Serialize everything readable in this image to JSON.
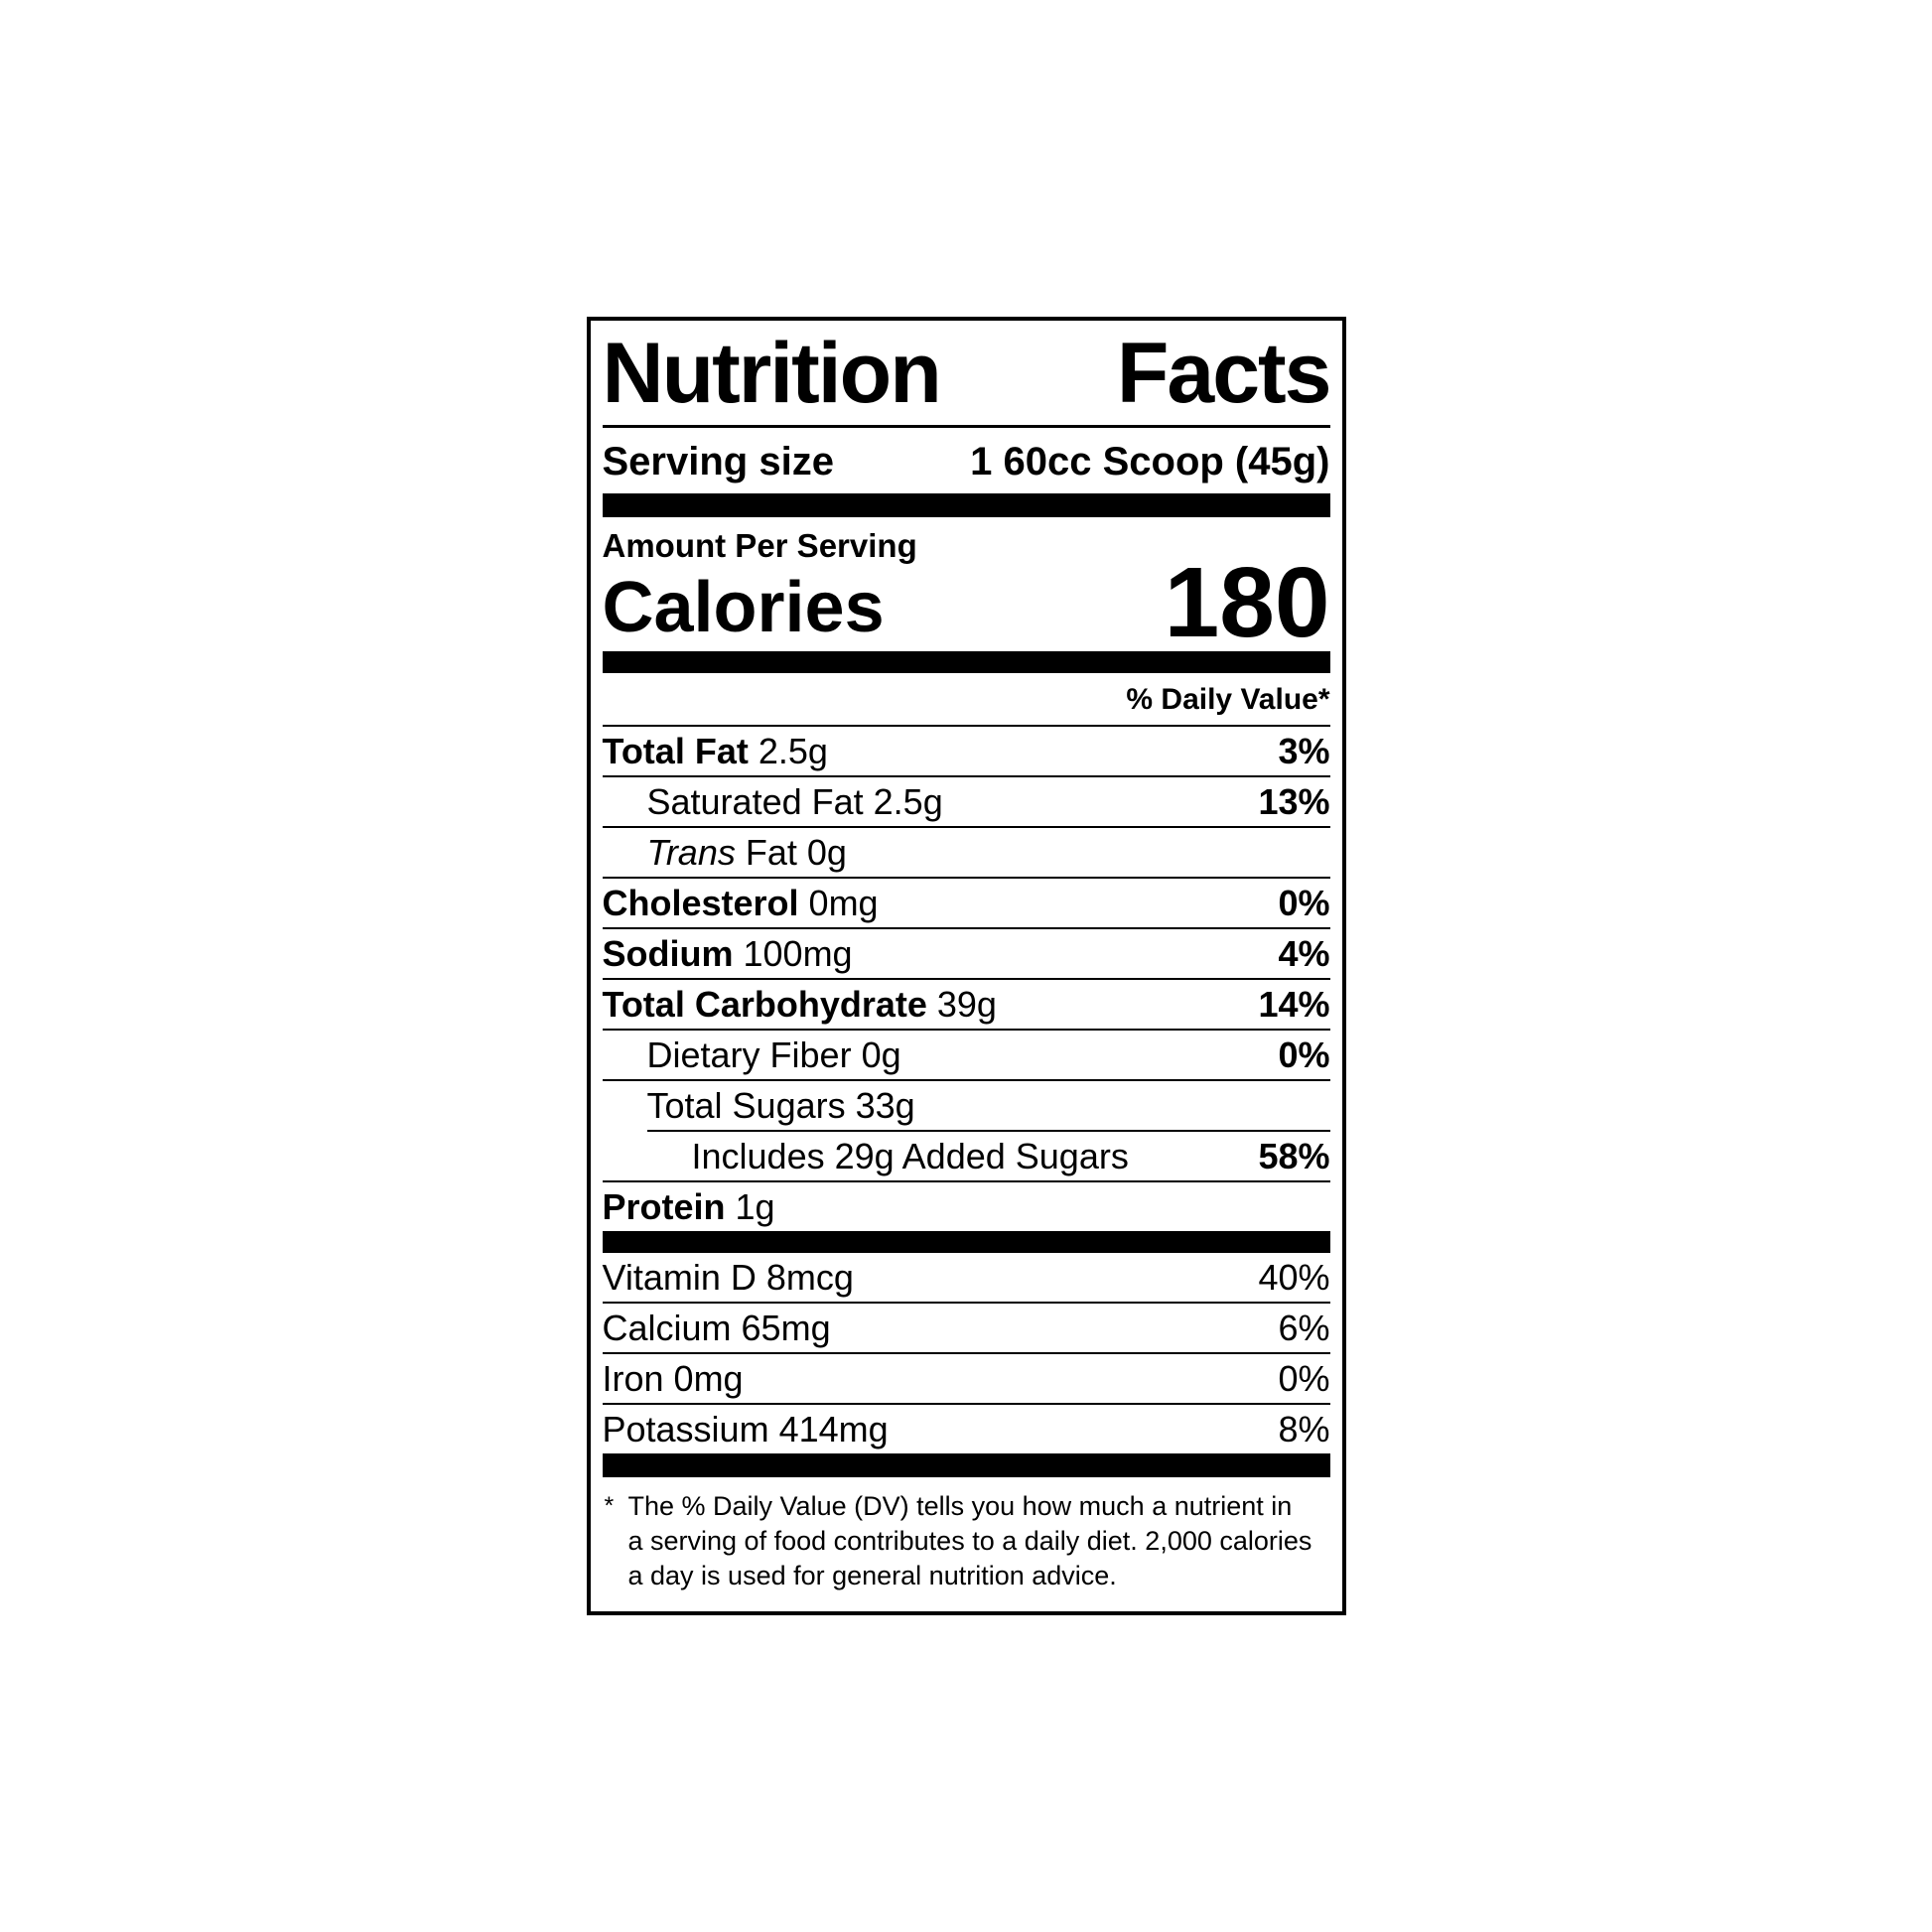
{
  "label": {
    "title": {
      "word1": "Nutrition",
      "word2": "Facts"
    },
    "serving": {
      "label": "Serving size",
      "value": "1 60cc Scoop (45g)"
    },
    "amount_per_serving": "Amount Per Serving",
    "calories": {
      "label": "Calories",
      "value": "180"
    },
    "daily_value_header": "% Daily Value*",
    "nutrients": [
      {
        "name": "Total Fat",
        "amount": "2.5g",
        "dv": "3%",
        "bold": true,
        "indent": 0
      },
      {
        "name": "Saturated Fat",
        "amount": "2.5g",
        "dv": "13%",
        "bold": false,
        "indent": 1
      },
      {
        "name_italic": "Trans",
        "name": "Fat",
        "amount": "0g",
        "dv": "",
        "bold": false,
        "indent": 1
      },
      {
        "name": "Cholesterol",
        "amount": "0mg",
        "dv": "0%",
        "bold": true,
        "indent": 0
      },
      {
        "name": "Sodium",
        "amount": "100mg",
        "dv": "4%",
        "bold": true,
        "indent": 0
      },
      {
        "name": "Total Carbohydrate",
        "amount": "39g",
        "dv": "14%",
        "bold": true,
        "indent": 0
      },
      {
        "name": "Dietary Fiber",
        "amount": "0g",
        "dv": "0%",
        "bold": false,
        "indent": 1
      },
      {
        "name": "Total Sugars",
        "amount": "33g",
        "dv": "",
        "bold": false,
        "indent": 1
      },
      {
        "name": "Includes 29g Added Sugars",
        "amount": "",
        "dv": "58%",
        "bold": false,
        "indent": 2
      },
      {
        "name": "Protein",
        "amount": "1g",
        "dv": "",
        "bold": true,
        "indent": 0
      }
    ],
    "micronutrients": [
      {
        "name": "Vitamin D",
        "amount": "8mcg",
        "dv": "40%"
      },
      {
        "name": "Calcium",
        "amount": "65mg",
        "dv": "6%"
      },
      {
        "name": "Iron",
        "amount": "0mg",
        "dv": "0%"
      },
      {
        "name": "Potassium",
        "amount": "414mg",
        "dv": "8%"
      }
    ],
    "footnote": {
      "marker": "*",
      "text": "The % Daily Value (DV) tells you how much a nutrient in a serving of food contributes to a daily diet. 2,000 calories a day is used for general nutrition advice."
    },
    "colors": {
      "ink": "#000000",
      "paper": "#ffffff"
    }
  }
}
